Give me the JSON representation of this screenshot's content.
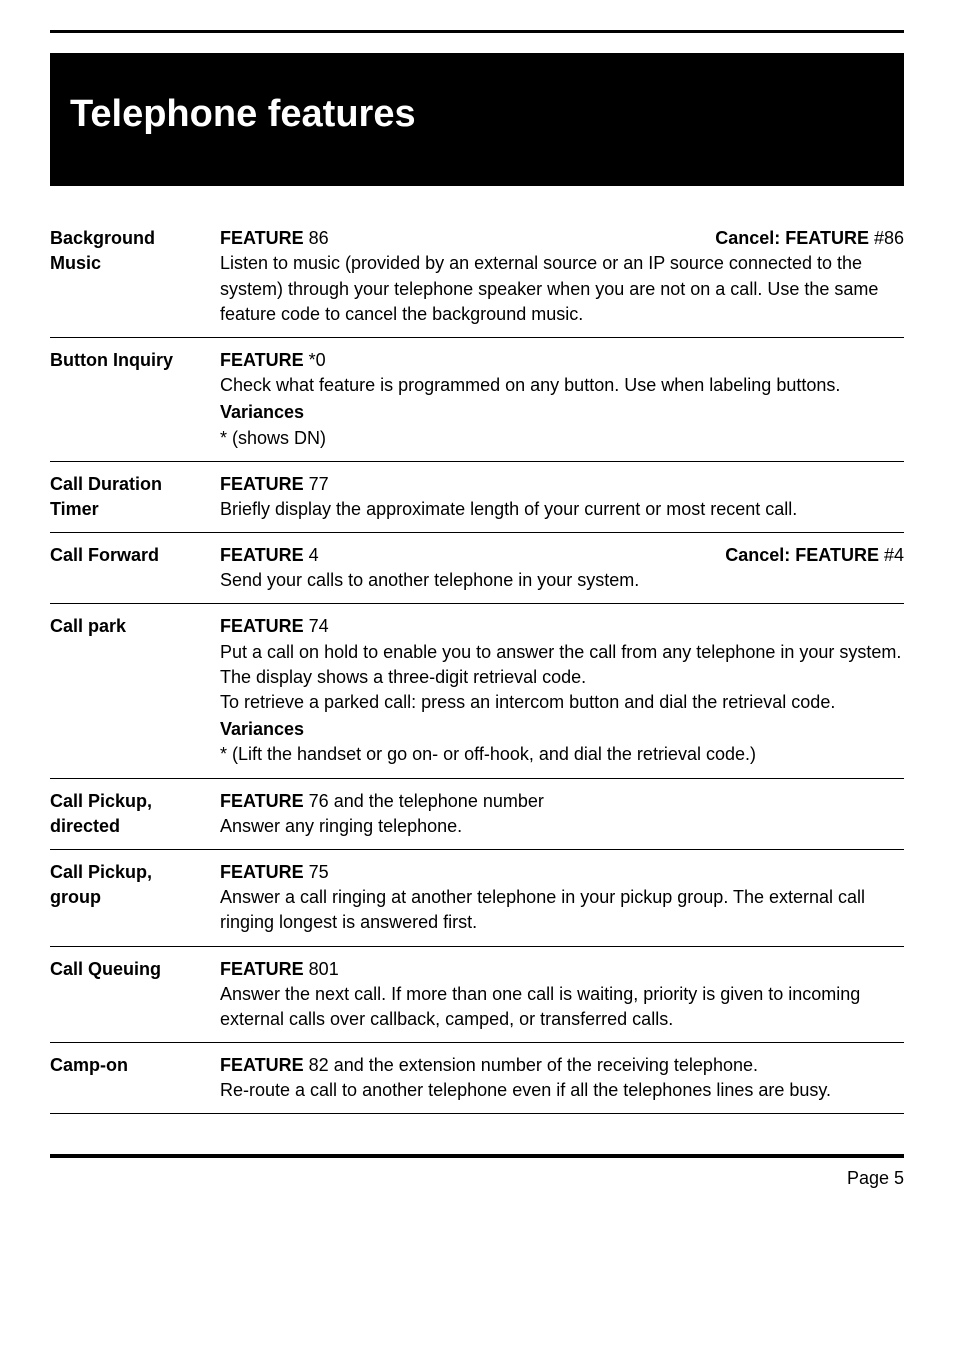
{
  "header": {
    "title": "Telephone  features"
  },
  "rows": [
    {
      "label_line1": "Background",
      "label_line2": "Music",
      "code_label": "FEATURE",
      "code_num": " 86",
      "cancel_label": "Cancel: FEATURE",
      "cancel_num": " #86",
      "body_p1": "Listen to music (provided by an external source or an IP source connected to the system) through your telephone speaker when you are not on a call. Use the same feature code to cancel the background music."
    },
    {
      "label_line1": "Button Inquiry",
      "code_label": "FEATURE",
      "code_num": " *0",
      "body_p1": "Check what feature is programmed on any button. Use when labeling buttons.",
      "variances_head": "Variances",
      "variances_body": "* (shows DN)"
    },
    {
      "label_line1": "Call Duration",
      "label_line2": "Timer",
      "code_label": "FEATURE",
      "code_num": " 77",
      "body_p1": "Briefly display the approximate length of your current or most recent call."
    },
    {
      "label_line1": "Call Forward",
      "code_label": "FEATURE",
      "code_num": " 4",
      "cancel_label": "Cancel: FEATURE",
      "cancel_num": " #4",
      "body_p1": "Send your calls to another telephone in your system."
    },
    {
      "label_line1": "Call park",
      "code_label": "FEATURE",
      "code_num": " 74",
      "body_p1": "Put a call on hold to enable you to answer the call from any telephone in your system. The display shows a three-digit retrieval code.",
      "body_p2": "To retrieve a parked call: press an intercom button and dial the retrieval code.",
      "variances_head": "Variances",
      "variances_body": "* (Lift the handset or go on- or off-hook, and dial the retrieval code.)"
    },
    {
      "label_line1": "Call Pickup,",
      "label_line2": "directed",
      "code_label": "FEATURE",
      "code_num": " 76 and the telephone number",
      "body_p1": "Answer any ringing telephone."
    },
    {
      "label_line1": "Call Pickup,",
      "label_line2": "group",
      "code_label": "FEATURE",
      "code_num": " 75",
      "body_p1": "Answer a call ringing at another telephone in your pickup group. The external call ringing longest is answered first."
    },
    {
      "label_line1": "Call Queuing",
      "code_label": "FEATURE",
      "code_num": " 801",
      "body_p1": "Answer the next call. If more than one call is waiting, priority is given to incoming external calls over callback, camped, or transferred calls."
    },
    {
      "label_line1": "Camp-on",
      "code_label": "FEATURE",
      "code_num": " 82 and the extension number of the receiving telephone.",
      "body_p1": "Re-route a call to another telephone even if all the telephones lines are busy."
    }
  ],
  "footer": {
    "page": "Page 5"
  }
}
